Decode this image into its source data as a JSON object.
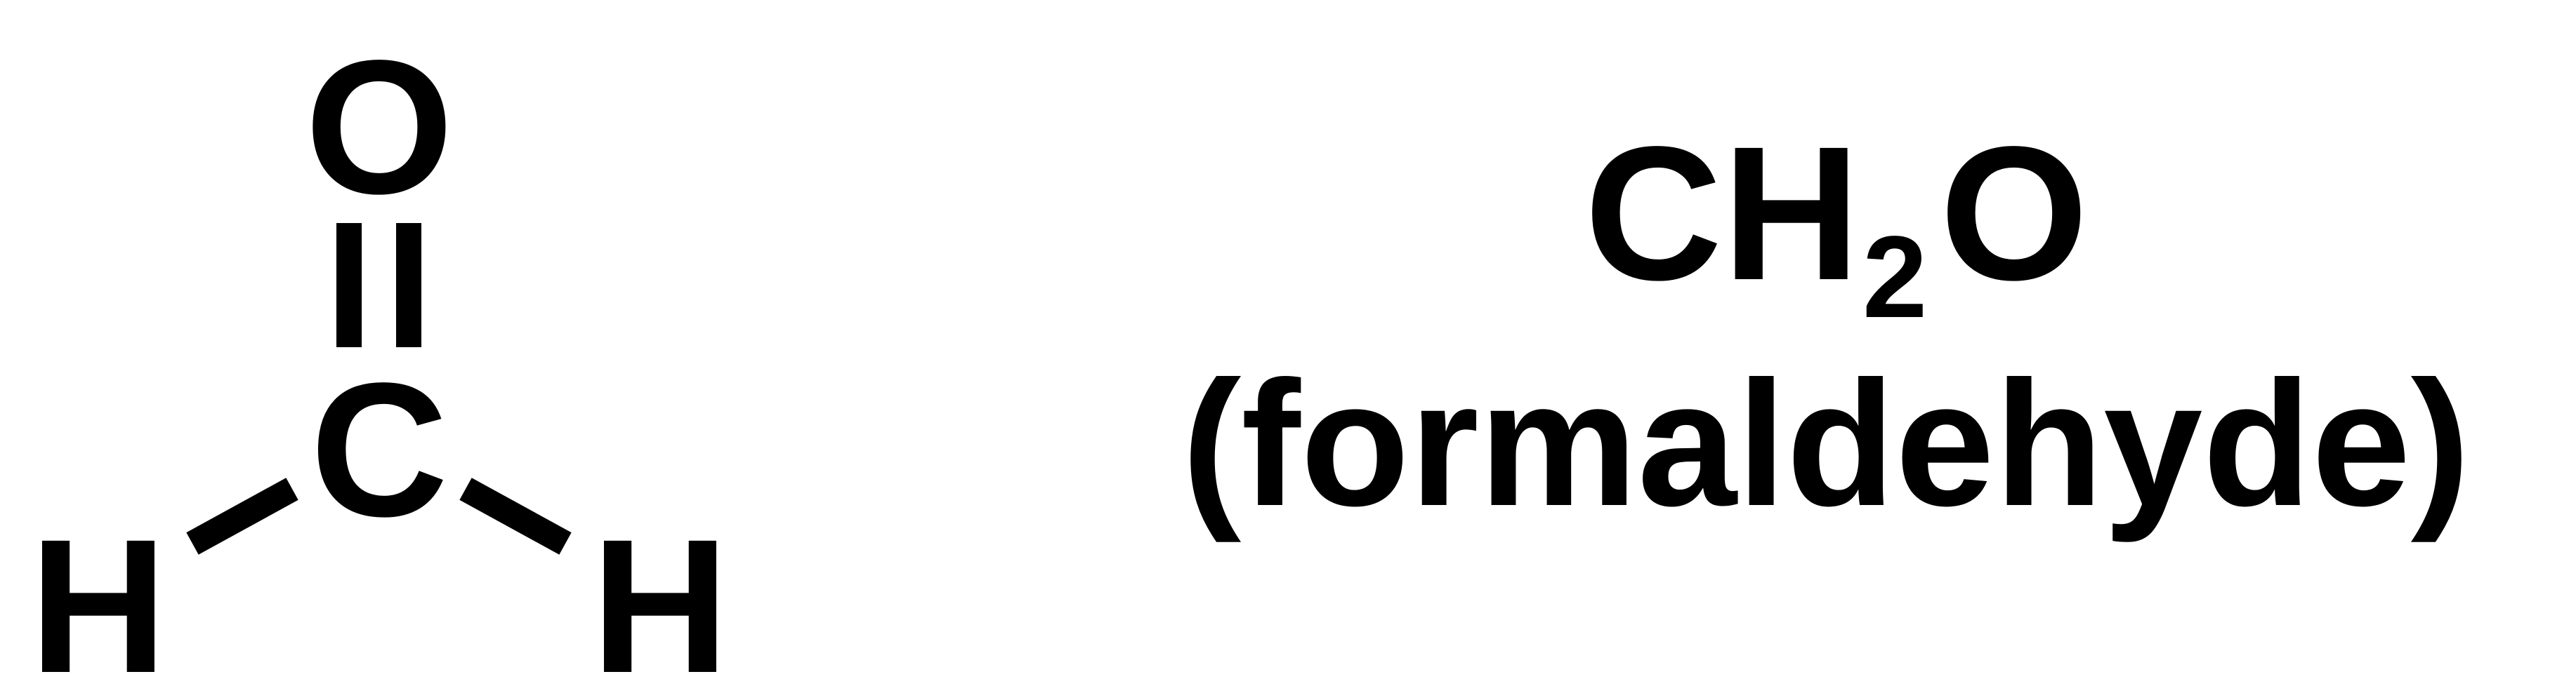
{
  "molecule": {
    "atoms": {
      "oxygen": "O",
      "carbon": "C",
      "hydrogen_left": "H",
      "hydrogen_right": "H"
    },
    "bonds": [
      {
        "from": "carbon",
        "to": "oxygen",
        "order": 2
      },
      {
        "from": "carbon",
        "to": "hydrogen_left",
        "order": 1
      },
      {
        "from": "carbon",
        "to": "hydrogen_right",
        "order": 1
      }
    ]
  },
  "formula": {
    "prefix": "CH",
    "subscript": "2",
    "suffix": "O"
  },
  "name": "(formaldehyde)",
  "colors": {
    "ink": "#000000",
    "background": "#ffffff"
  }
}
